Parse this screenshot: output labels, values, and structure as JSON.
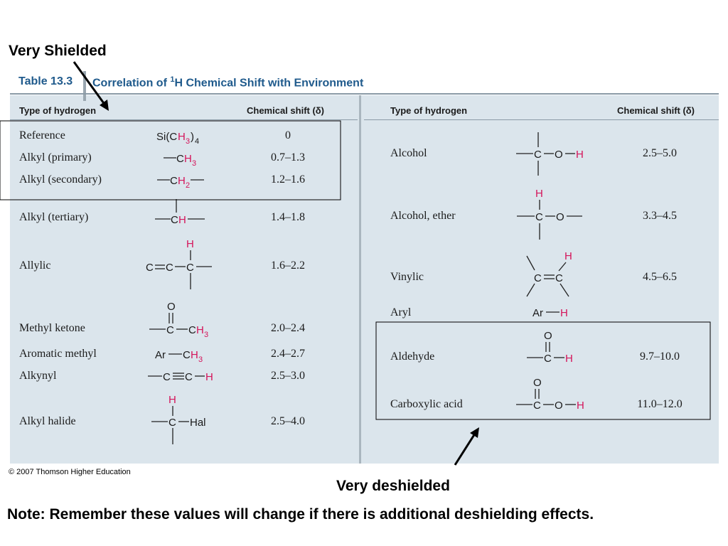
{
  "annotations": {
    "very_shielded": "Very Shielded",
    "very_deshielded": "Very deshielded",
    "note": "Note: Remember these values will change if there is additional deshielding effects.",
    "copyright": "© 2007 Thomson Higher Education"
  },
  "table": {
    "number": "Table 13.3",
    "title_prefix": "Correlation of ",
    "title_sup": "1",
    "title_suffix": "H Chemical Shift with Environment",
    "col_type": "Type of hydrogen",
    "col_shift": "Chemical shift (δ)",
    "left_rows": [
      {
        "name": "Reference",
        "shift": "0"
      },
      {
        "name": "Alkyl (primary)",
        "shift": "0.7–1.3"
      },
      {
        "name": "Alkyl (secondary)",
        "shift": "1.2–1.6"
      },
      {
        "name": "Alkyl (tertiary)",
        "shift": "1.4–1.8"
      },
      {
        "name": "Allylic",
        "shift": "1.6–2.2"
      },
      {
        "name": "Methyl ketone",
        "shift": "2.0–2.4"
      },
      {
        "name": "Aromatic methyl",
        "shift": "2.4–2.7"
      },
      {
        "name": "Alkynyl",
        "shift": "2.5–3.0"
      },
      {
        "name": "Alkyl halide",
        "shift": "2.5–4.0"
      }
    ],
    "right_rows": [
      {
        "name": "Alcohol",
        "shift": "2.5–5.0"
      },
      {
        "name": "Alcohol, ether",
        "shift": "3.3–4.5"
      },
      {
        "name": "Vinylic",
        "shift": "4.5–6.5"
      },
      {
        "name": "Aryl",
        "shift": ""
      },
      {
        "name": "Aldehyde",
        "shift": "9.7–10.0"
      },
      {
        "name": "Carboxylic acid",
        "shift": "11.0–12.0"
      }
    ]
  },
  "colors": {
    "accent_pink": "#d4145a",
    "title_blue": "#1f5a8c",
    "panel_bg": "#dbe5ec"
  }
}
